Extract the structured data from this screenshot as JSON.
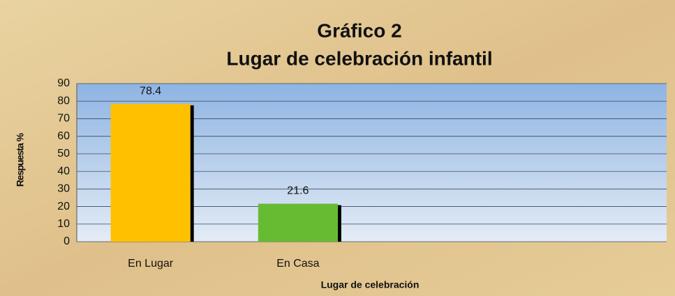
{
  "chart_data": {
    "type": "bar",
    "title": "Gráfico 2",
    "subtitle": "Lugar de celebración infantil",
    "x_label": "Lugar de celebración",
    "y_label": "Respuesta %",
    "categories": [
      "En Lugar",
      "En Casa",
      null,
      null
    ],
    "values": [
      78.4,
      21.6,
      null,
      null
    ],
    "colors": [
      "#ffc000",
      "#66bb33",
      null,
      null
    ],
    "ylim": [
      0,
      90
    ],
    "yticks": [
      0,
      10,
      20,
      30,
      40,
      50,
      60,
      70,
      80,
      90
    ],
    "grid": true
  }
}
